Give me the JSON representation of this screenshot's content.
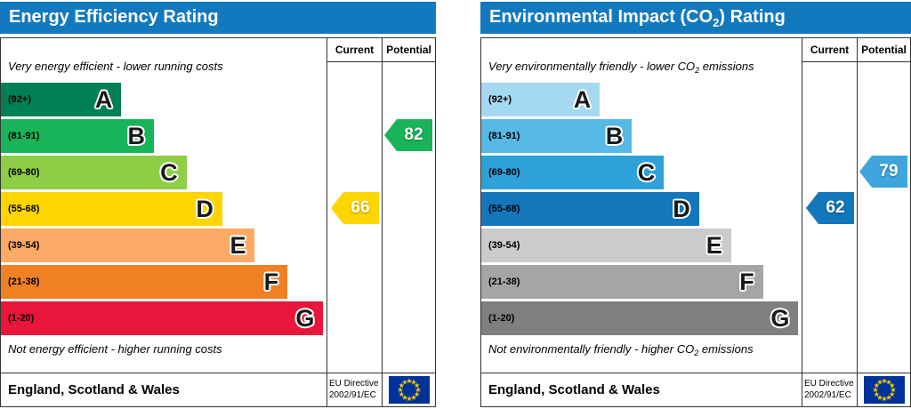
{
  "eu": {
    "flag_bg": "#003399",
    "flag_stars": "#ffcc00"
  },
  "charts": [
    {
      "title": {
        "pre": "Energy Efficiency Rating",
        "sub": "",
        "post": ""
      },
      "header_bg": "#1279be",
      "columns": {
        "current": "Current",
        "potential": "Potential"
      },
      "top_note": {
        "pre": "Very energy efficient - lower running costs",
        "sub": "",
        "post": ""
      },
      "bottom_note": {
        "pre": "Not energy efficient - higher running costs",
        "sub": "",
        "post": ""
      },
      "bands": [
        {
          "range": "(92+)",
          "letter": "A",
          "color": "#008054",
          "width_pct": 37
        },
        {
          "range": "(81-91)",
          "letter": "B",
          "color": "#19b459",
          "width_pct": 47
        },
        {
          "range": "(69-80)",
          "letter": "C",
          "color": "#8dce46",
          "width_pct": 57
        },
        {
          "range": "(55-68)",
          "letter": "D",
          "color": "#ffd500",
          "width_pct": 68
        },
        {
          "range": "(39-54)",
          "letter": "E",
          "color": "#fcaa65",
          "width_pct": 78
        },
        {
          "range": "(21-38)",
          "letter": "F",
          "color": "#ef8023",
          "width_pct": 88
        },
        {
          "range": "(1-20)",
          "letter": "G",
          "color": "#e9153b",
          "width_pct": 99
        }
      ],
      "current": {
        "value": "66",
        "band_index": 3,
        "color": "#ffd500"
      },
      "potential": {
        "value": "82",
        "band_index": 1,
        "color": "#19b459"
      },
      "footer": {
        "region": "England, Scotland & Wales",
        "directive_line1": "EU Directive",
        "directive_line2": "2002/91/EC"
      }
    },
    {
      "title": {
        "pre": "Environmental Impact (CO",
        "sub": "2",
        "post": ") Rating"
      },
      "header_bg": "#1279be",
      "columns": {
        "current": "Current",
        "potential": "Potential"
      },
      "top_note": {
        "pre": "Very environmentally friendly - lower CO",
        "sub": "2",
        "post": " emissions"
      },
      "bottom_note": {
        "pre": "Not environmentally friendly - higher CO",
        "sub": "2",
        "post": " emissions"
      },
      "bands": [
        {
          "range": "(92+)",
          "letter": "A",
          "color": "#a5d9f1",
          "width_pct": 37
        },
        {
          "range": "(81-91)",
          "letter": "B",
          "color": "#56b8e5",
          "width_pct": 47
        },
        {
          "range": "(69-80)",
          "letter": "C",
          "color": "#2ea2d8",
          "width_pct": 57
        },
        {
          "range": "(55-68)",
          "letter": "D",
          "color": "#1377bc",
          "width_pct": 68
        },
        {
          "range": "(39-54)",
          "letter": "E",
          "color": "#cbcbcb",
          "width_pct": 78
        },
        {
          "range": "(21-38)",
          "letter": "F",
          "color": "#a5a5a5",
          "width_pct": 88
        },
        {
          "range": "(1-20)",
          "letter": "G",
          "color": "#7f7f7f",
          "width_pct": 99
        }
      ],
      "current": {
        "value": "62",
        "band_index": 3,
        "color": "#1377bc"
      },
      "potential": {
        "value": "79",
        "band_index": 2,
        "color": "#3fa5dc"
      },
      "footer": {
        "region": "England, Scotland & Wales",
        "directive_line1": "EU Directive",
        "directive_line2": "2002/91/EC"
      }
    }
  ],
  "chart_data": [
    {
      "type": "bar",
      "title": "Energy Efficiency Rating",
      "categories": [
        "A",
        "B",
        "C",
        "D",
        "E",
        "F",
        "G"
      ],
      "ranges": [
        "92+",
        "81-91",
        "69-80",
        "55-68",
        "39-54",
        "21-38",
        "1-20"
      ],
      "band_widths_pct": [
        37,
        47,
        57,
        68,
        78,
        88,
        99
      ],
      "band_colors": [
        "#008054",
        "#19b459",
        "#8dce46",
        "#ffd500",
        "#fcaa65",
        "#ef8023",
        "#e9153b"
      ],
      "current": 66,
      "current_band": "D",
      "potential": 82,
      "potential_band": "B",
      "top_note": "Very energy efficient - lower running costs",
      "bottom_note": "Not energy efficient - higher running costs",
      "region": "England, Scotland & Wales",
      "directive": "EU Directive 2002/91/EC"
    },
    {
      "type": "bar",
      "title": "Environmental Impact (CO2) Rating",
      "categories": [
        "A",
        "B",
        "C",
        "D",
        "E",
        "F",
        "G"
      ],
      "ranges": [
        "92+",
        "81-91",
        "69-80",
        "55-68",
        "39-54",
        "21-38",
        "1-20"
      ],
      "band_widths_pct": [
        37,
        47,
        57,
        68,
        78,
        88,
        99
      ],
      "band_colors": [
        "#a5d9f1",
        "#56b8e5",
        "#2ea2d8",
        "#1377bc",
        "#cbcbcb",
        "#a5a5a5",
        "#7f7f7f"
      ],
      "current": 62,
      "current_band": "D",
      "potential": 79,
      "potential_band": "C",
      "top_note": "Very environmentally friendly - lower CO2 emissions",
      "bottom_note": "Not environmentally friendly - higher CO2 emissions",
      "region": "England, Scotland & Wales",
      "directive": "EU Directive 2002/91/EC"
    }
  ]
}
